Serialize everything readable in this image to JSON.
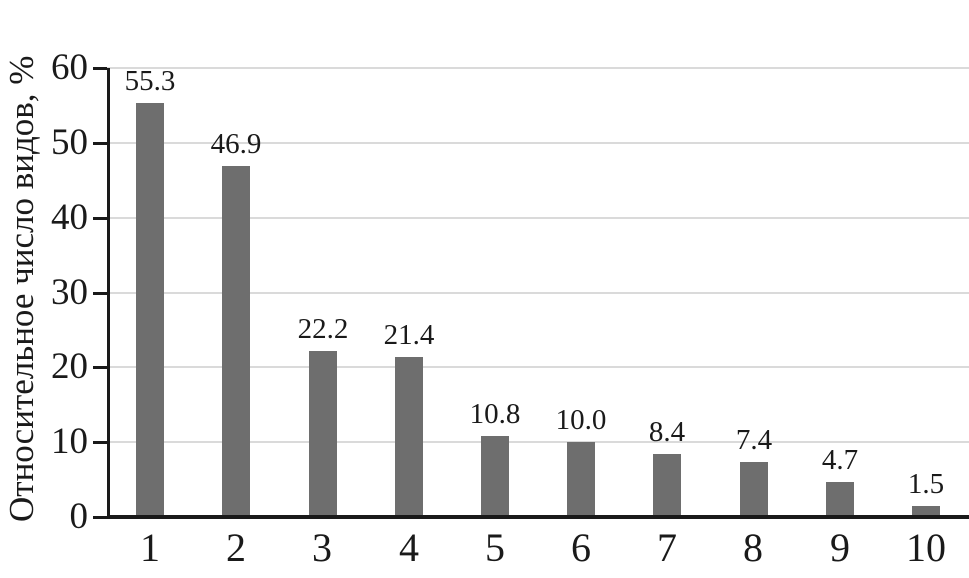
{
  "chart_data": {
    "type": "bar",
    "categories": [
      "1",
      "2",
      "3",
      "4",
      "5",
      "6",
      "7",
      "8",
      "9",
      "10"
    ],
    "values": [
      55.3,
      46.9,
      22.2,
      21.4,
      10.8,
      10.0,
      8.4,
      7.4,
      4.7,
      1.5
    ],
    "value_labels": [
      "55.3",
      "46.9",
      "22.2",
      "21.4",
      "10.8",
      "10.0",
      "8.4",
      "7.4",
      "4.7",
      "1.5"
    ],
    "title": "",
    "xlabel": "",
    "ylabel": "Относительное число видов, %",
    "ylim": [
      0,
      60
    ],
    "yticks": [
      0,
      10,
      20,
      30,
      40,
      50,
      60
    ],
    "grid": true,
    "legend": "none",
    "bar_color": "#6e6e6e",
    "gridline_color": "#dadada",
    "axis_color": "#1a1a1a"
  }
}
